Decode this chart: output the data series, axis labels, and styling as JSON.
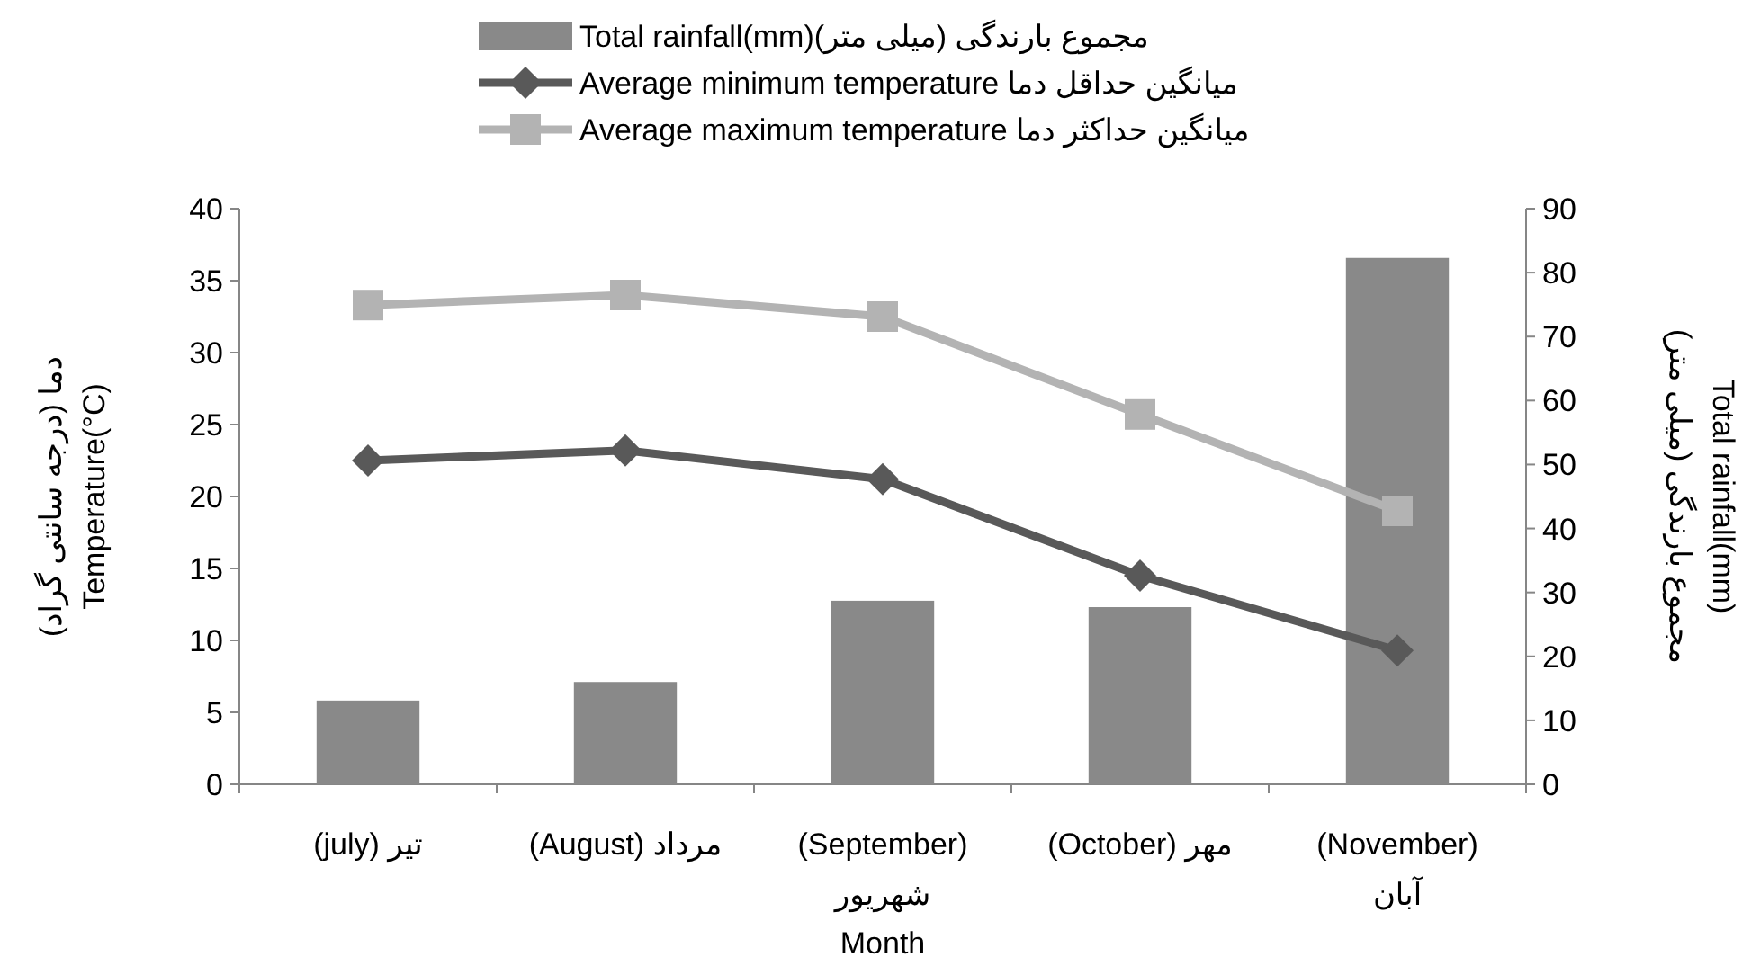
{
  "chart_data": {
    "type": "bar",
    "xlabel": "Month",
    "ylabel": "دما (درجه سانتی گراد)\nTemperature(°C)",
    "y2label": "Total rainfall(mm)\nمجموع بارندگی (میلی متر)",
    "categories": [
      "(july) تیر",
      "(August) مرداد",
      "(September)\nشهریور",
      "(October) مهر",
      "(November)\nآبان"
    ],
    "series": [
      {
        "name": "Total rainfall(mm)مجموع بارندگی (میلی متر)",
        "axis": "y2",
        "color": "#898989",
        "values": [
          13.1,
          16.0,
          28.7,
          27.7,
          82.3
        ]
      },
      {
        "name": "Average minimum temperature  میانگین حداقل دما",
        "type": "line",
        "marker": "diamond",
        "color": "#595959",
        "values": [
          22.5,
          23.2,
          21.2,
          14.5,
          9.3
        ]
      },
      {
        "name": "Average maximum temperature میانگین حداکثر دما",
        "type": "line",
        "marker": "square",
        "color": "#b3b3b3",
        "values": [
          33.3,
          34.0,
          32.5,
          25.7,
          19.0
        ]
      }
    ],
    "ylim": [
      0,
      40
    ],
    "yticks": [
      0,
      5,
      10,
      15,
      20,
      25,
      30,
      35,
      40
    ],
    "y2lim": [
      0,
      90
    ],
    "y2ticks": [
      0,
      10,
      20,
      30,
      40,
      50,
      60,
      70,
      80,
      90
    ],
    "legend": "top",
    "grid": false
  }
}
